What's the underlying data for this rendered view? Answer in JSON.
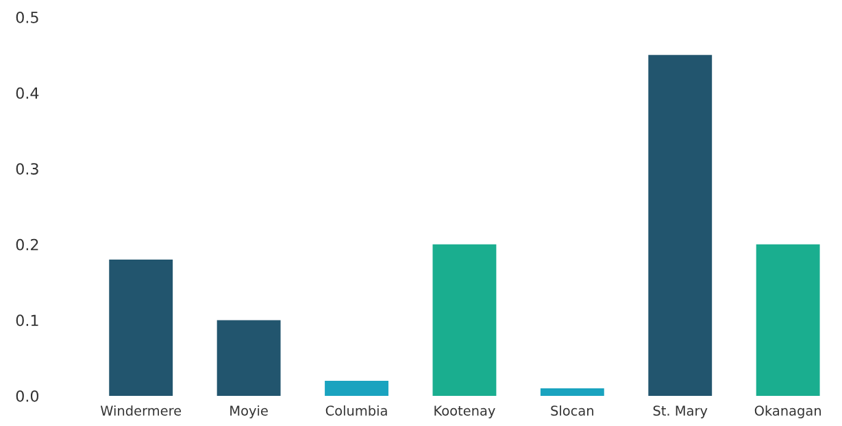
{
  "chart_data": {
    "type": "bar",
    "categories": [
      "Windermere",
      "Moyie",
      "Columbia",
      "Kootenay",
      "Slocan",
      "St. Mary",
      "Okanagan"
    ],
    "values": [
      0.18,
      0.1,
      0.02,
      0.2,
      0.01,
      0.45,
      0.2
    ],
    "colors": [
      "#22556e",
      "#22556e",
      "#1aa3bf",
      "#1aae8f",
      "#1aa3bf",
      "#22556e",
      "#1aae8f"
    ],
    "ylim": [
      0,
      0.5
    ],
    "yticks": [
      {
        "value": 0,
        "label": "0.0"
      },
      0.1,
      0.2,
      0.3,
      0.4,
      0.5
    ],
    "grid": false,
    "legend": false
  }
}
